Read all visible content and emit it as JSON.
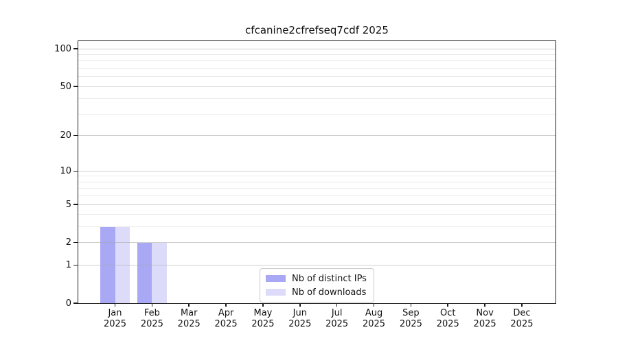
{
  "title": "cfcanine2cfrefseq7cdf 2025",
  "chart_data": {
    "type": "bar",
    "title": "cfcanine2cfrefseq7cdf 2025",
    "categories": [
      "Jan",
      "Feb",
      "Mar",
      "Apr",
      "May",
      "Jun",
      "Jul",
      "Aug",
      "Sep",
      "Oct",
      "Nov",
      "Dec"
    ],
    "category_year": "2025",
    "series": [
      {
        "name": "Nb of distinct IPs",
        "color": "#a8a8f4",
        "values": [
          3,
          2,
          0,
          0,
          0,
          0,
          0,
          0,
          0,
          0,
          0,
          0
        ]
      },
      {
        "name": "Nb of downloads",
        "color": "#dcdcfa",
        "values": [
          3,
          2,
          0,
          0,
          0,
          0,
          0,
          0,
          0,
          0,
          0,
          0
        ]
      }
    ],
    "yscale": "symlog-log1p",
    "ylim": [
      0,
      115
    ],
    "yticks": [
      0,
      1,
      2,
      5,
      10,
      20,
      50,
      100
    ],
    "yticks_minor": [
      3,
      4,
      6,
      7,
      8,
      9,
      30,
      40,
      60,
      70,
      80,
      90
    ],
    "grid": true,
    "legend_position": "lower center",
    "legend_entries": [
      "Nb of distinct IPs",
      "Nb of downloads"
    ]
  },
  "colors": {
    "background": "#ffffff",
    "axis": "#1a1a1a",
    "grid_major": "#aaaaaa",
    "grid_minor": "#dddddd",
    "bar_distinct_ips": "#a8a8f4",
    "bar_downloads": "#dcdcfa"
  }
}
